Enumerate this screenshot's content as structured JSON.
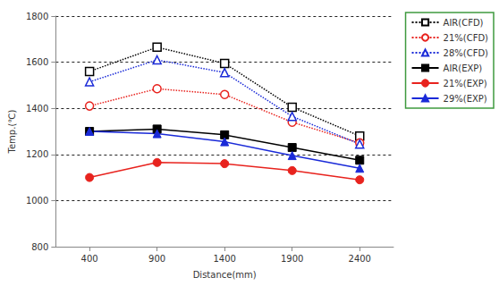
{
  "chart_data": {
    "type": "line",
    "x_label": "Distance(mm)",
    "y_label": "Temp.(℃)",
    "categories": [
      400,
      900,
      1400,
      1900,
      2400
    ],
    "ylim": [
      800,
      1800
    ],
    "yticks": [
      800,
      1000,
      1200,
      1400,
      1600,
      1800
    ],
    "grid": true,
    "legend": "upper right",
    "series": [
      {
        "name": "AIR(CFD)",
        "color": "#000000",
        "line_style": "dotted",
        "marker": "open-square",
        "values": [
          1560,
          1665,
          1595,
          1405,
          1280
        ]
      },
      {
        "name": "21%(CFD)",
        "color": "#e8231e",
        "line_style": "dotted",
        "marker": "open-circle",
        "values": [
          1410,
          1485,
          1460,
          1340,
          1250
        ]
      },
      {
        "name": "28%(CFD)",
        "color": "#1a2ad8",
        "line_style": "dotted",
        "marker": "open-triangle",
        "values": [
          1515,
          1610,
          1555,
          1365,
          1245
        ]
      },
      {
        "name": "AIR(EXP)",
        "color": "#000000",
        "line_style": "solid",
        "marker": "square",
        "values": [
          1300,
          1310,
          1285,
          1230,
          1175
        ]
      },
      {
        "name": "21%(EXP)",
        "color": "#e8231e",
        "line_style": "solid",
        "marker": "circle",
        "values": [
          1100,
          1165,
          1160,
          1130,
          1090
        ]
      },
      {
        "name": "29%(EXP)",
        "color": "#1a2ad8",
        "line_style": "solid",
        "marker": "triangle",
        "values": [
          1300,
          1290,
          1255,
          1195,
          1140
        ]
      }
    ]
  }
}
